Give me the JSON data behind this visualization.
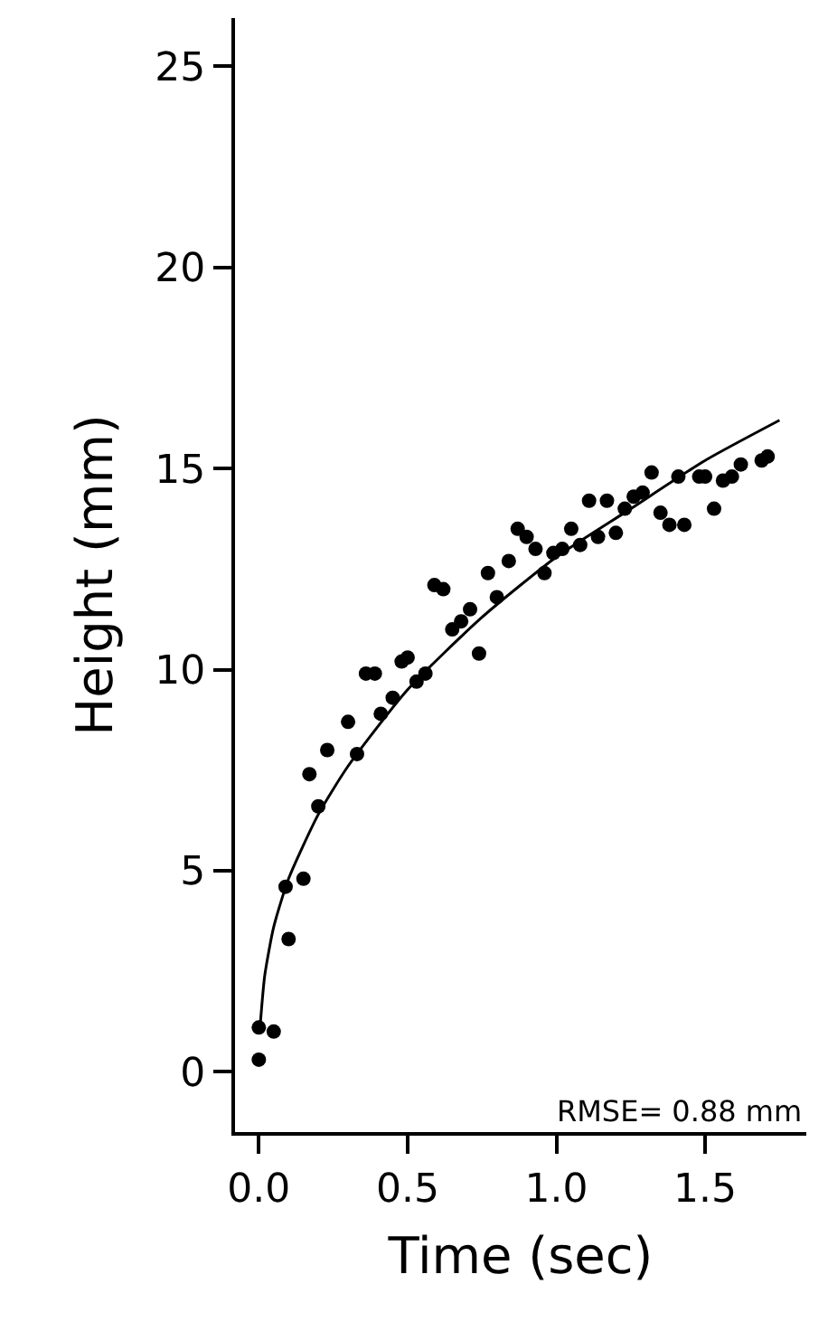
{
  "chart_data": {
    "type": "scatter",
    "xlabel": "Time (sec)",
    "ylabel": "Height (mm)",
    "xlim": [
      -0.08,
      1.84
    ],
    "xticks": [
      {
        "value": 0,
        "label": "0.0"
      },
      0.5,
      {
        "value": 1,
        "label": "1.0"
      },
      1.5
    ],
    "ylim": [
      -1.5,
      26.2
    ],
    "yticks": [
      0,
      5,
      10,
      15,
      20,
      25
    ],
    "marker": "circle",
    "annotations": [
      "RMSE= 0.88 mm"
    ],
    "series": [
      {
        "color": "#000000",
        "x": [
          0.0,
          0.0,
          0.05,
          0.1,
          0.09,
          0.15,
          0.2,
          0.17,
          0.23,
          0.3,
          0.33,
          0.36,
          0.39,
          0.41,
          0.45,
          0.48,
          0.5,
          0.53,
          0.56,
          0.59,
          0.62,
          0.65,
          0.68,
          0.71,
          0.74,
          0.77,
          0.8,
          0.84,
          0.87,
          0.9,
          0.93,
          0.96,
          0.99,
          1.02,
          1.05,
          1.08,
          1.11,
          1.17,
          1.14,
          1.2,
          1.23,
          1.26,
          1.29,
          1.32,
          1.35,
          1.38,
          1.43,
          1.41,
          1.48,
          1.5,
          1.53,
          1.56,
          1.59,
          1.62,
          1.69,
          1.71
        ],
        "values": [
          0.3,
          1.1,
          1.0,
          3.3,
          4.6,
          4.8,
          6.6,
          7.4,
          8.0,
          8.7,
          7.9,
          9.9,
          9.9,
          8.9,
          9.3,
          10.2,
          10.3,
          9.7,
          9.9,
          12.1,
          12.0,
          11.0,
          11.2,
          11.5,
          10.4,
          12.4,
          11.8,
          12.7,
          13.5,
          13.3,
          13.0,
          12.4,
          12.9,
          13.0,
          13.5,
          13.1,
          14.2,
          14.2,
          13.3,
          13.4,
          14.0,
          14.3,
          14.4,
          14.9,
          13.9,
          13.6,
          13.6,
          14.8,
          14.8,
          14.8,
          14.0,
          14.7,
          14.8,
          15.1,
          15.2,
          15.3
        ]
      },
      {
        "type": "line",
        "color": "#000000",
        "marker": "none",
        "line_style": "solid",
        "x": [
          0.003,
          0.02,
          0.05,
          0.1,
          0.2,
          0.3,
          0.5,
          0.75,
          1.0,
          1.25,
          1.5,
          1.75
        ],
        "values": [
          1.0,
          2.4,
          3.6,
          4.8,
          6.4,
          7.6,
          9.5,
          11.3,
          12.8,
          14.0,
          15.2,
          16.2
        ]
      }
    ]
  }
}
